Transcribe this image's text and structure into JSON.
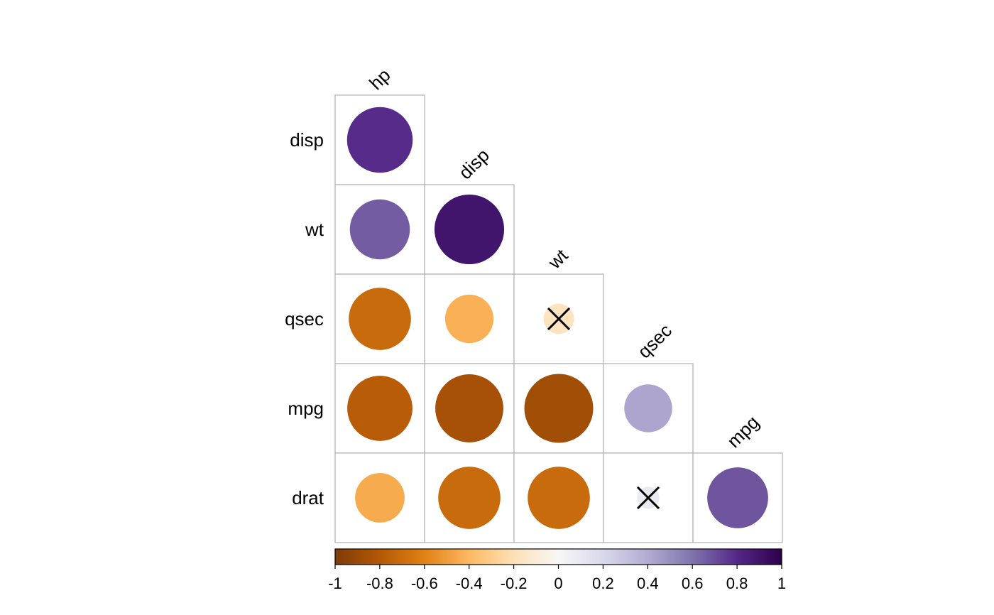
{
  "chart_data": {
    "type": "heatmap",
    "subtype": "correlation-matrix-lower-circles",
    "variables": [
      "hp",
      "disp",
      "wt",
      "qsec",
      "mpg",
      "drat"
    ],
    "row_labels": [
      "disp",
      "wt",
      "qsec",
      "mpg",
      "drat"
    ],
    "column_labels": [
      "hp",
      "disp",
      "wt",
      "qsec",
      "mpg"
    ],
    "cells": [
      {
        "row": "disp",
        "col": "hp",
        "value": 0.79,
        "insignificant": false
      },
      {
        "row": "wt",
        "col": "hp",
        "value": 0.66,
        "insignificant": false
      },
      {
        "row": "wt",
        "col": "disp",
        "value": 0.89,
        "insignificant": false
      },
      {
        "row": "qsec",
        "col": "hp",
        "value": -0.71,
        "insignificant": false
      },
      {
        "row": "qsec",
        "col": "disp",
        "value": -0.43,
        "insignificant": false
      },
      {
        "row": "qsec",
        "col": "wt",
        "value": -0.17,
        "insignificant": true
      },
      {
        "row": "mpg",
        "col": "hp",
        "value": -0.78,
        "insignificant": false
      },
      {
        "row": "mpg",
        "col": "disp",
        "value": -0.85,
        "insignificant": false
      },
      {
        "row": "mpg",
        "col": "wt",
        "value": -0.87,
        "insignificant": false
      },
      {
        "row": "mpg",
        "col": "qsec",
        "value": 0.42,
        "insignificant": false
      },
      {
        "row": "drat",
        "col": "hp",
        "value": -0.45,
        "insignificant": false
      },
      {
        "row": "drat",
        "col": "disp",
        "value": -0.71,
        "insignificant": false
      },
      {
        "row": "drat",
        "col": "wt",
        "value": -0.71,
        "insignificant": false
      },
      {
        "row": "drat",
        "col": "qsec",
        "value": 0.09,
        "insignificant": true
      },
      {
        "row": "drat",
        "col": "mpg",
        "value": 0.68,
        "insignificant": false
      }
    ],
    "colorbar": {
      "range": [
        -1,
        1
      ],
      "ticks": [
        "-1",
        "-0.8",
        "-0.6",
        "-0.4",
        "-0.2",
        "0",
        "0.2",
        "0.4",
        "0.6",
        "0.8",
        "1"
      ],
      "placement": "bottom"
    },
    "palette": [
      "#7F3B08",
      "#B35806",
      "#E08214",
      "#FDB863",
      "#FEE0B6",
      "#F7F7F7",
      "#D8DAEB",
      "#B2ABD2",
      "#8073AC",
      "#542788",
      "#2D004B"
    ],
    "insignificant_mark": "cross",
    "cell_border_color": "#b0b0b0"
  }
}
